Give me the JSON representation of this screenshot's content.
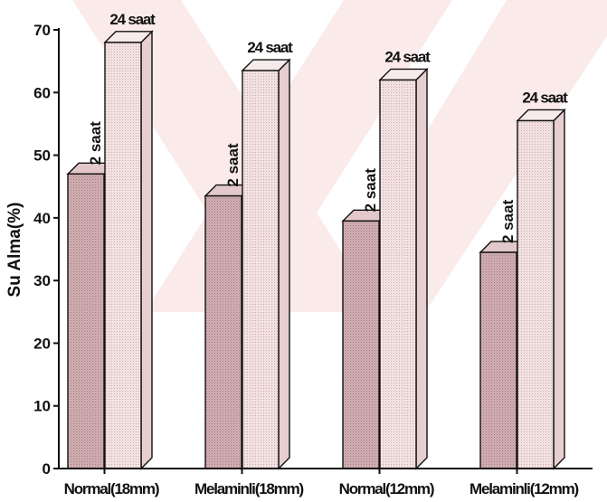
{
  "chart_data": {
    "type": "bar",
    "title": "",
    "xlabel": "",
    "ylabel": "Su Alma(%)",
    "ylim": [
      0,
      70
    ],
    "yticks": [
      0,
      10,
      20,
      30,
      40,
      50,
      60,
      70
    ],
    "categories": [
      "Normal(18mm)",
      "Melaminli(18mm)",
      "Normal(12mm)",
      "Melaminli(12mm)"
    ],
    "series": [
      {
        "name": "2 saat",
        "values": [
          47,
          43.5,
          39.5,
          34.5
        ],
        "color": "#d9b8bb"
      },
      {
        "name": "24 saat",
        "values": [
          68,
          63.5,
          62,
          55.5
        ],
        "color": "#f1dede"
      }
    ],
    "bar_style": "3d",
    "grid": false,
    "legend": "none"
  }
}
